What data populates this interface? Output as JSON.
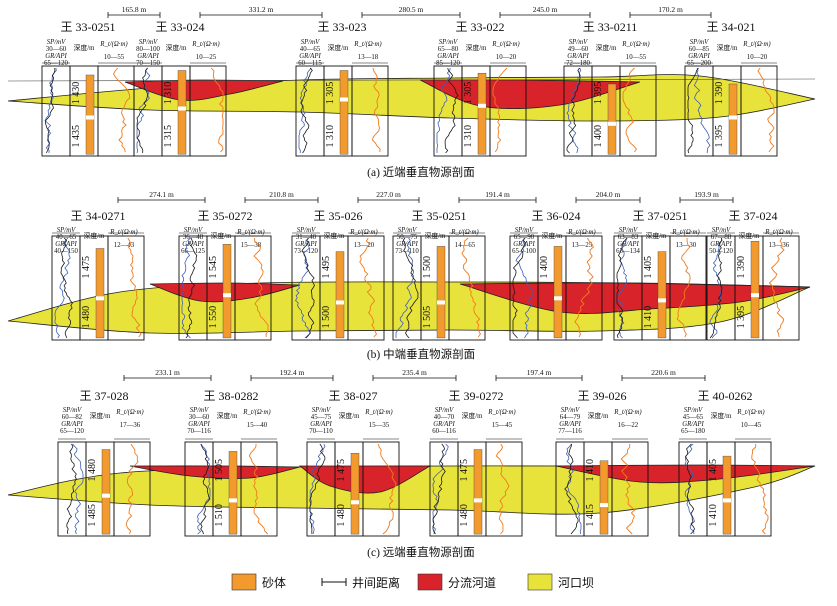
{
  "colors": {
    "sand": "#F39A2E",
    "channel": "#D8232A",
    "mouth_bar": "#E8E33A",
    "sp_curve": "#3B5FB6",
    "gr_curve": "#1a1a1a",
    "rt_curve": "#F07A1E"
  },
  "panels": [
    {
      "caption": "(a) 近端垂直物源剖面",
      "distances": [
        "165.8 m",
        "331.2 m",
        "280.5 m",
        "245.0 m",
        "170.2 m"
      ],
      "wells": [
        {
          "name": "王 33-0251",
          "sp_label": "SP/mV",
          "sp_range": "30—60",
          "gr_label": "GR/API",
          "gr_range": "65—120",
          "depth_label": "深度/m",
          "rt_label": "R_t/(Ω·m)",
          "rt_range": "10—55",
          "depth_top": "1 430",
          "depth_bot": "1 435"
        },
        {
          "name": "王 33-024",
          "sp_label": "SP/mV",
          "sp_range": "80—100",
          "gr_label": "GR/API",
          "gr_range": "70—150",
          "depth_label": "深度/m",
          "rt_label": "R_t/(Ω·m)",
          "rt_range": "10—25",
          "depth_top": "1 310",
          "depth_bot": "1 315"
        },
        {
          "name": "王 33-023",
          "sp_label": "SP/mV",
          "sp_range": "40—65",
          "gr_label": "GR/API",
          "gr_range": "60—115",
          "depth_label": "深度/m",
          "rt_label": "R_t/(Ω·m)",
          "rt_range": "13—18",
          "depth_top": "1 305",
          "depth_bot": "1 310"
        },
        {
          "name": "王 33-022",
          "sp_label": "SP/mV",
          "sp_range": "65—80",
          "gr_label": "GR/API",
          "gr_range": "85—120",
          "depth_label": "深度/m",
          "rt_label": "R_t/(Ω·m)",
          "rt_range": "10—20",
          "depth_top": "1 305",
          "depth_bot": "1 310"
        },
        {
          "name": "王 33-0211",
          "sp_label": "SP/mV",
          "sp_range": "49—60",
          "gr_label": "GR/API",
          "gr_range": "72—180",
          "depth_label": "深度/m",
          "rt_label": "R_t/(Ω·m)",
          "rt_range": "10—55",
          "depth_top": "1 395",
          "depth_bot": "1 400"
        },
        {
          "name": "王 34-021",
          "sp_label": "SP/mV",
          "sp_range": "60—85",
          "gr_label": "GR/API",
          "gr_range": "65—200",
          "depth_label": "深度/m",
          "rt_label": "R_t/(Ω·m)",
          "rt_range": "10—20",
          "depth_top": "1 390",
          "depth_bot": "1 395"
        }
      ]
    },
    {
      "caption": "(b) 中端垂直物源剖面",
      "distances": [
        "274.1 m",
        "210.8 m",
        "227.0 m",
        "191.4 m",
        "204.0 m",
        "193.9 m"
      ],
      "wells": [
        {
          "name": "王 34-0271",
          "sp_label": "SP/mV",
          "sp_range": "40—65",
          "gr_label": "GR/API",
          "gr_range": "40—150",
          "depth_label": "深度/m",
          "rt_label": "R_t/(Ω·m)",
          "rt_range": "12—43",
          "depth_top": "1 475",
          "depth_bot": "1 480"
        },
        {
          "name": "王 35-0272",
          "sp_label": "SP/mV",
          "sp_range": "36—48",
          "gr_label": "GR/API",
          "gr_range": "66—125",
          "depth_label": "深度/m",
          "rt_label": "R_t/(Ω·m)",
          "rt_range": "15—38",
          "depth_top": "1 545",
          "depth_bot": "1 550"
        },
        {
          "name": "王 35-026",
          "sp_label": "SP/mV",
          "sp_range": "31—40",
          "gr_label": "GR/API",
          "gr_range": "73—120",
          "depth_label": "深度/m",
          "rt_label": "R_t/(Ω·m)",
          "rt_range": "13—20",
          "depth_top": "1 495",
          "depth_bot": "1 500"
        },
        {
          "name": "王 35-0251",
          "sp_label": "SP/mV",
          "sp_range": "50—75",
          "gr_label": "GR/API",
          "gr_range": "73—110",
          "depth_label": "深度/m",
          "rt_label": "R_t/(Ω·m)",
          "rt_range": "14—65",
          "depth_top": "1 500",
          "depth_bot": "1 505"
        },
        {
          "name": "王 36-024",
          "sp_label": "SP/mV",
          "sp_range": "65—90",
          "gr_label": "GR/API",
          "gr_range": "65—100",
          "depth_label": "深度/m",
          "rt_label": "R_t/(Ω·m)",
          "rt_range": "13—25",
          "depth_top": "1 400",
          "depth_bot": ""
        },
        {
          "name": "王 37-0251",
          "sp_label": "SP/mV",
          "sp_range": "63—83",
          "gr_label": "GR/API",
          "gr_range": "65—134",
          "depth_label": "深度/m",
          "rt_label": "R_t/(Ω·m)",
          "rt_range": "13—30",
          "depth_top": "1 405",
          "depth_bot": "1 410"
        },
        {
          "name": "王 37-024",
          "sp_label": "SP/mV",
          "sp_range": "67—88",
          "gr_label": "GR/API",
          "gr_range": "50—120",
          "depth_label": "深度/m",
          "rt_label": "R_t/(Ω·m)",
          "rt_range": "13—36",
          "depth_top": "1 390",
          "depth_bot": "1 395"
        }
      ]
    },
    {
      "caption": "(c) 远端垂直物源剖面",
      "distances": [
        "233.1 m",
        "192.4 m",
        "235.4 m",
        "197.4 m",
        "220.6 m"
      ],
      "wells": [
        {
          "name": "王 37-028",
          "sp_label": "SP/mV",
          "sp_range": "60—82",
          "gr_label": "GR/API",
          "gr_range": "65—120",
          "depth_label": "深度/m",
          "rt_label": "R_t/(Ω·m)",
          "rt_range": "17—36",
          "depth_top": "1 480",
          "depth_bot": "1 485"
        },
        {
          "name": "王 38-0282",
          "sp_label": "SP/mV",
          "sp_range": "30—60",
          "gr_label": "GR/API",
          "gr_range": "70—116",
          "depth_label": "深度/m",
          "rt_label": "R_t/(Ω·m)",
          "rt_range": "15—40",
          "depth_top": "1 505",
          "depth_bot": "1 510"
        },
        {
          "name": "王 38-027",
          "sp_label": "SP/mV",
          "sp_range": "45—75",
          "gr_label": "GR/API",
          "gr_range": "70—110",
          "depth_label": "深度/m",
          "rt_label": "R_t/(Ω·m)",
          "rt_range": "15—35",
          "depth_top": "1 475",
          "depth_bot": "1 480"
        },
        {
          "name": "王 39-0272",
          "sp_label": "SP/mV",
          "sp_range": "40—70",
          "gr_label": "GR/API",
          "gr_range": "60—116",
          "depth_label": "深度/m",
          "rt_label": "R_t/(Ω·m)",
          "rt_range": "15—45",
          "depth_top": "1 475",
          "depth_bot": "1 480"
        },
        {
          "name": "王 39-026",
          "sp_label": "SP/mV",
          "sp_range": "64—79",
          "gr_label": "GR/API",
          "gr_range": "77—116",
          "depth_label": "深度/m",
          "rt_label": "R_t/(Ω·m)",
          "rt_range": "16—22",
          "depth_top": "1 410",
          "depth_bot": "1 415"
        },
        {
          "name": "王 40-0262",
          "sp_label": "SP/mV",
          "sp_range": "45—65",
          "gr_label": "GR/API",
          "gr_range": "65—180",
          "depth_label": "深度/m",
          "rt_label": "R_t/(Ω·m)",
          "rt_range": "10—45",
          "depth_top": "1 405",
          "depth_bot": "1 410"
        }
      ]
    }
  ],
  "legend": {
    "items": [
      {
        "key": "sand",
        "label": "砂体"
      },
      {
        "key": "distance",
        "label": "井间距离"
      },
      {
        "key": "channel",
        "label": "分流河道"
      },
      {
        "key": "mouth_bar",
        "label": "河口坝"
      }
    ]
  }
}
